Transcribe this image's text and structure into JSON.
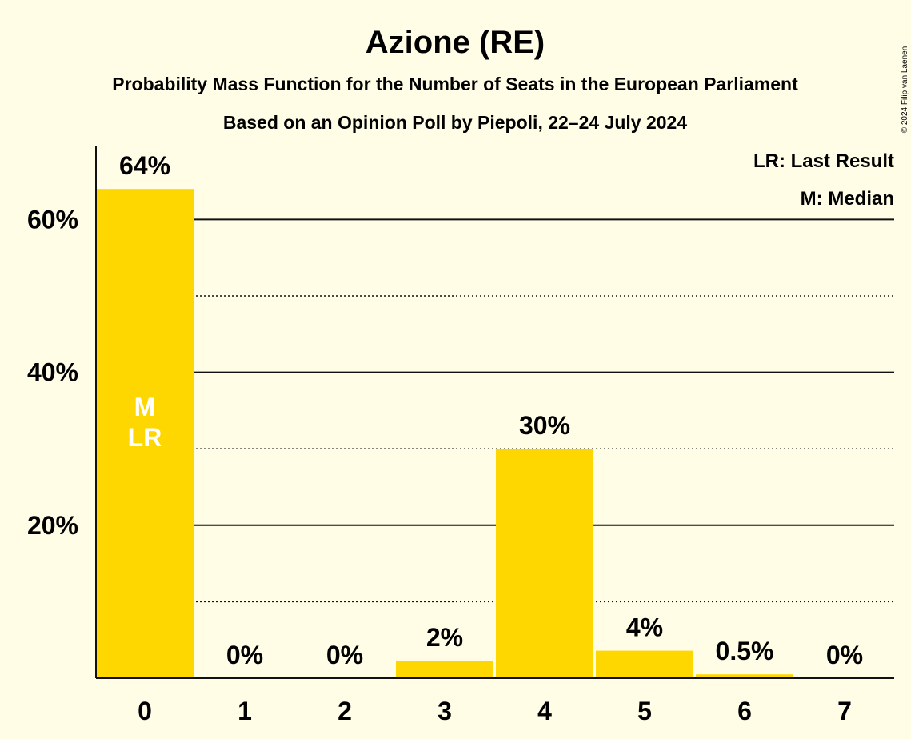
{
  "chart_data": {
    "type": "bar",
    "title": "Azione (RE)",
    "subtitle1": "Probability Mass Function for the Number of Seats in the European Parliament",
    "subtitle2": "Based on an Opinion Poll by Piepoli, 22–24 July 2024",
    "categories": [
      "0",
      "1",
      "2",
      "3",
      "4",
      "5",
      "6",
      "7"
    ],
    "values": [
      64,
      0,
      0,
      2.3,
      30,
      3.6,
      0.5,
      0
    ],
    "value_labels": [
      "64%",
      "0%",
      "0%",
      "2%",
      "30%",
      "4%",
      "0.5%",
      "0%"
    ],
    "ylim": [
      0,
      70
    ],
    "yticks": [
      20,
      40,
      60
    ],
    "ytick_labels": [
      "20%",
      "40%",
      "60%"
    ],
    "minor_gridlines": [
      10,
      30,
      50
    ],
    "bar_color": "#FFD700",
    "median_index": 0,
    "last_result_index": 0,
    "median_marker": "M",
    "last_result_marker": "LR",
    "legend": [
      "LR: Last Result",
      "M: Median"
    ],
    "legend_position": "top-right",
    "copyright": "© 2024 Filip van Laenen"
  }
}
